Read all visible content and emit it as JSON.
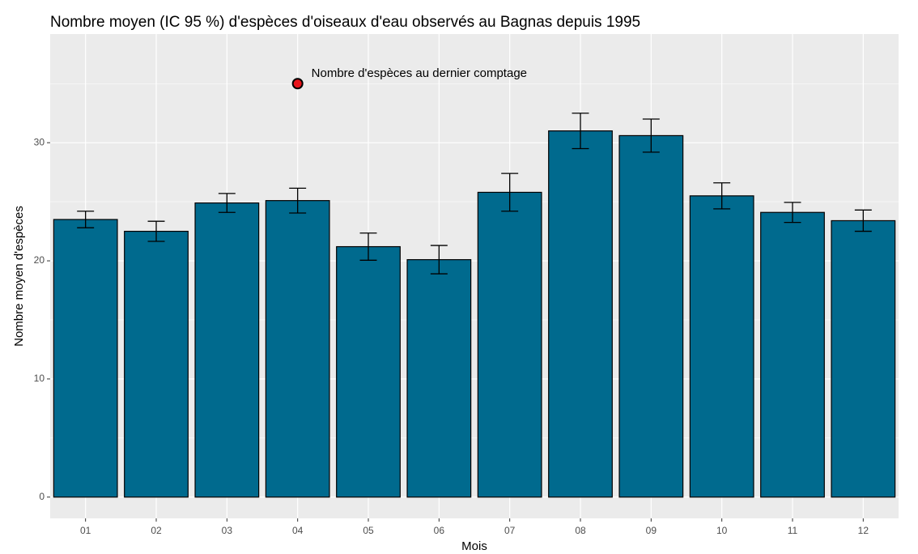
{
  "chart_data": {
    "type": "bar",
    "title": "Nombre moyen (IC 95 %) d'espèces d'oiseaux d'eau observés au Bagnas depuis 1995",
    "x_label": "Mois",
    "y_label": "Nombre moyen d'espèces",
    "categories": [
      "01",
      "02",
      "03",
      "04",
      "05",
      "06",
      "07",
      "08",
      "09",
      "10",
      "11",
      "12"
    ],
    "values": [
      23.5,
      22.5,
      24.9,
      25.1,
      21.2,
      20.1,
      25.8,
      31.0,
      30.6,
      25.5,
      24.1,
      23.4
    ],
    "errors": [
      0.7,
      0.85,
      0.8,
      1.05,
      1.15,
      1.2,
      1.6,
      1.5,
      1.4,
      1.1,
      0.85,
      0.9
    ],
    "color": "#006A8E",
    "edge_color": "#000000",
    "ylim": [
      -1.8,
      39.2
    ],
    "yticks": [
      0,
      10,
      20,
      30
    ],
    "grid": true,
    "annotation": {
      "label": "Nombre d'espèces au dernier comptage",
      "category": "04",
      "value": 35.0,
      "color": "#E8141B"
    }
  }
}
